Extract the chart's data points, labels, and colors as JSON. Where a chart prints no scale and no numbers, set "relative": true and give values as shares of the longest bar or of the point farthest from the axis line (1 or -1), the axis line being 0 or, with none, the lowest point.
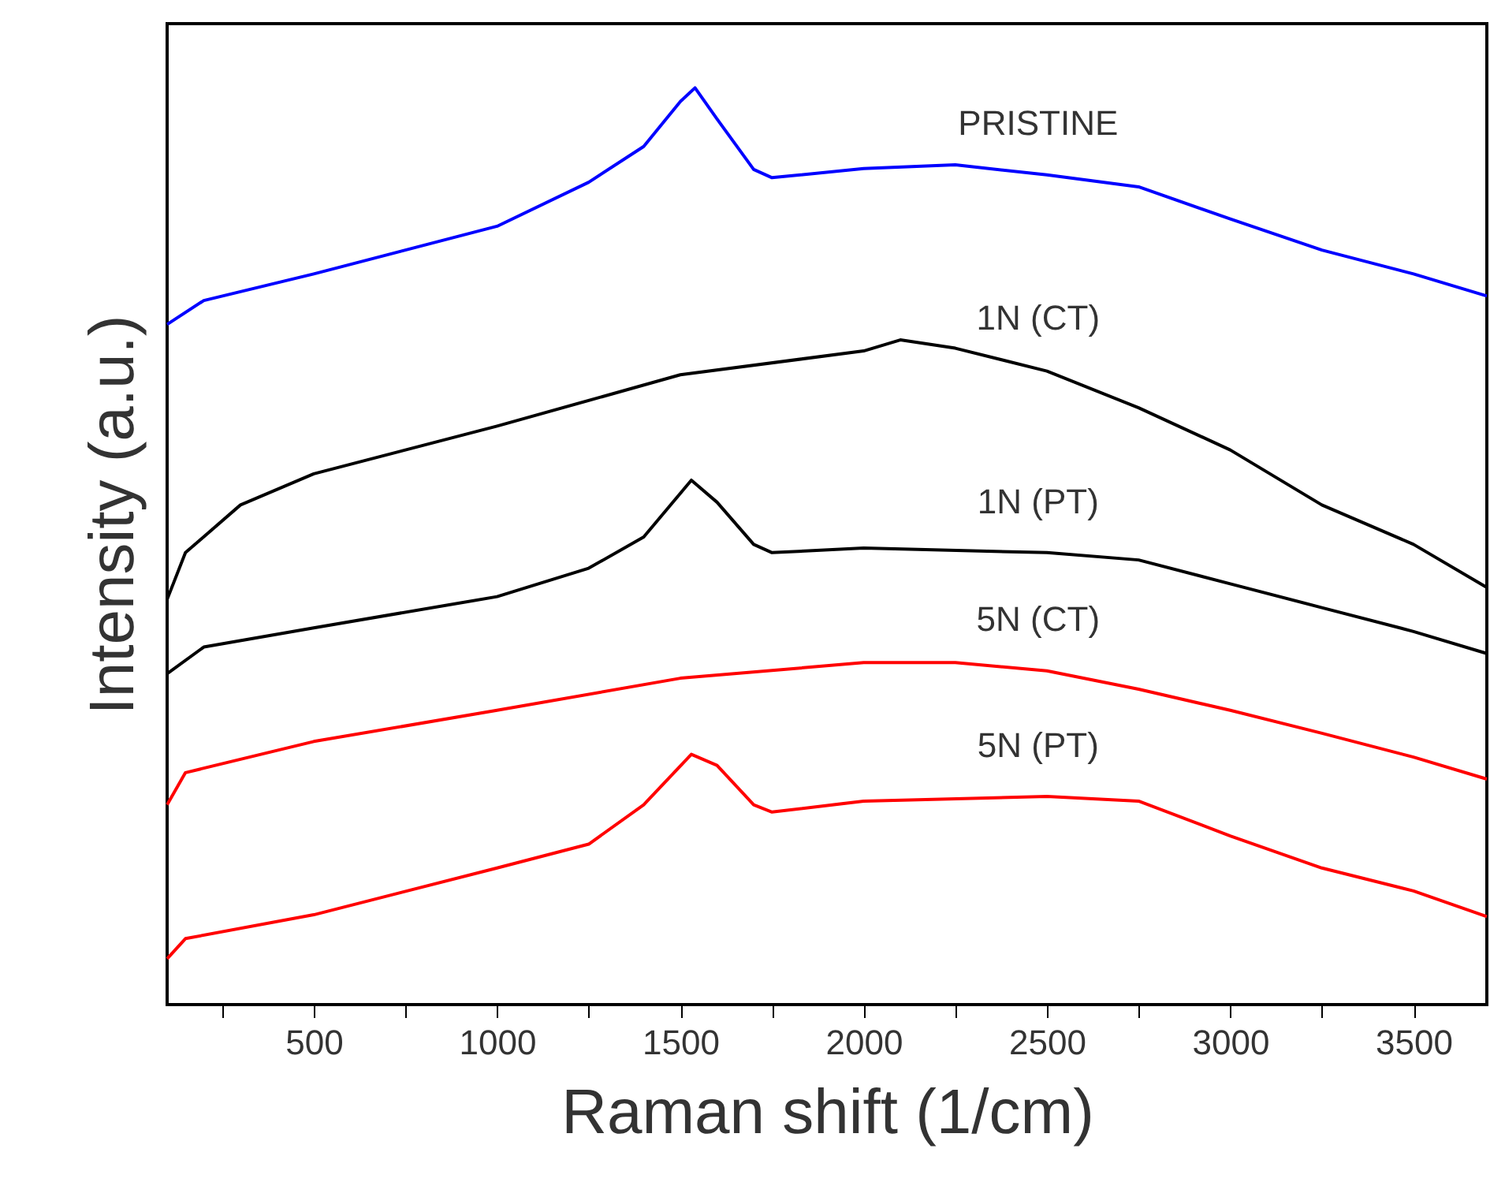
{
  "chart_data": {
    "type": "line",
    "relative": true,
    "xlabel": "Raman shift (1/cm)",
    "ylabel": "Intensity (a.u.)",
    "xlim": [
      100,
      3700
    ],
    "xticks": [
      {
        "value": 250,
        "label": null
      },
      500,
      {
        "value": 750,
        "label": null
      },
      1000,
      {
        "value": 1250,
        "label": null
      },
      1500,
      {
        "value": 1750,
        "label": null
      },
      2000,
      {
        "value": 2250,
        "label": null
      },
      2500,
      {
        "value": 2750,
        "label": null
      },
      3000,
      {
        "value": 3250,
        "label": null
      },
      3500
    ],
    "grid": false,
    "marker": "none",
    "line_style": "solid",
    "series": [
      {
        "name": "PRISTINE",
        "color": "#0000ff",
        "x": [
          100,
          200,
          500,
          1000,
          1250,
          1400,
          1500,
          1540,
          1600,
          1700,
          1750,
          2000,
          2250,
          2500,
          2750,
          3000,
          3250,
          3500,
          3700
        ],
        "values": [
          0.742,
          0.768,
          0.797,
          0.849,
          0.897,
          0.936,
          0.985,
          1.0,
          0.966,
          0.911,
          0.902,
          0.912,
          0.916,
          0.905,
          0.892,
          0.857,
          0.823,
          0.797,
          0.773
        ]
      },
      {
        "name": "1N (CT)",
        "color": "#000000",
        "x": [
          100,
          150,
          300,
          500,
          1000,
          1500,
          2000,
          2100,
          2250,
          2500,
          2750,
          3000,
          3250,
          3500,
          3700
        ],
        "values": [
          0.442,
          0.493,
          0.545,
          0.579,
          0.631,
          0.687,
          0.713,
          0.725,
          0.716,
          0.691,
          0.651,
          0.605,
          0.545,
          0.502,
          0.455
        ]
      },
      {
        "name": "1N (PT)",
        "color": "#000000",
        "x": [
          100,
          200,
          500,
          1000,
          1250,
          1400,
          1530,
          1600,
          1700,
          1750,
          2000,
          2500,
          2750,
          3000,
          3250,
          3500,
          3700
        ],
        "values": [
          0.361,
          0.39,
          0.411,
          0.445,
          0.476,
          0.51,
          0.572,
          0.548,
          0.502,
          0.493,
          0.498,
          0.493,
          0.485,
          0.459,
          0.433,
          0.407,
          0.383
        ]
      },
      {
        "name": "5N (CT)",
        "color": "#ff0000",
        "x": [
          100,
          150,
          500,
          1000,
          1500,
          2000,
          2250,
          2500,
          2750,
          3000,
          3250,
          3500,
          3700
        ],
        "values": [
          0.218,
          0.253,
          0.287,
          0.321,
          0.356,
          0.373,
          0.373,
          0.364,
          0.344,
          0.321,
          0.296,
          0.27,
          0.246
        ]
      },
      {
        "name": "5N (PT)",
        "color": "#ff0000",
        "x": [
          100,
          150,
          500,
          1000,
          1250,
          1400,
          1530,
          1600,
          1700,
          1750,
          2000,
          2500,
          2750,
          3000,
          3250,
          3500,
          3700
        ],
        "values": [
          0.05,
          0.072,
          0.098,
          0.149,
          0.175,
          0.218,
          0.273,
          0.261,
          0.218,
          0.21,
          0.222,
          0.227,
          0.222,
          0.184,
          0.149,
          0.124,
          0.096
        ]
      }
    ]
  }
}
